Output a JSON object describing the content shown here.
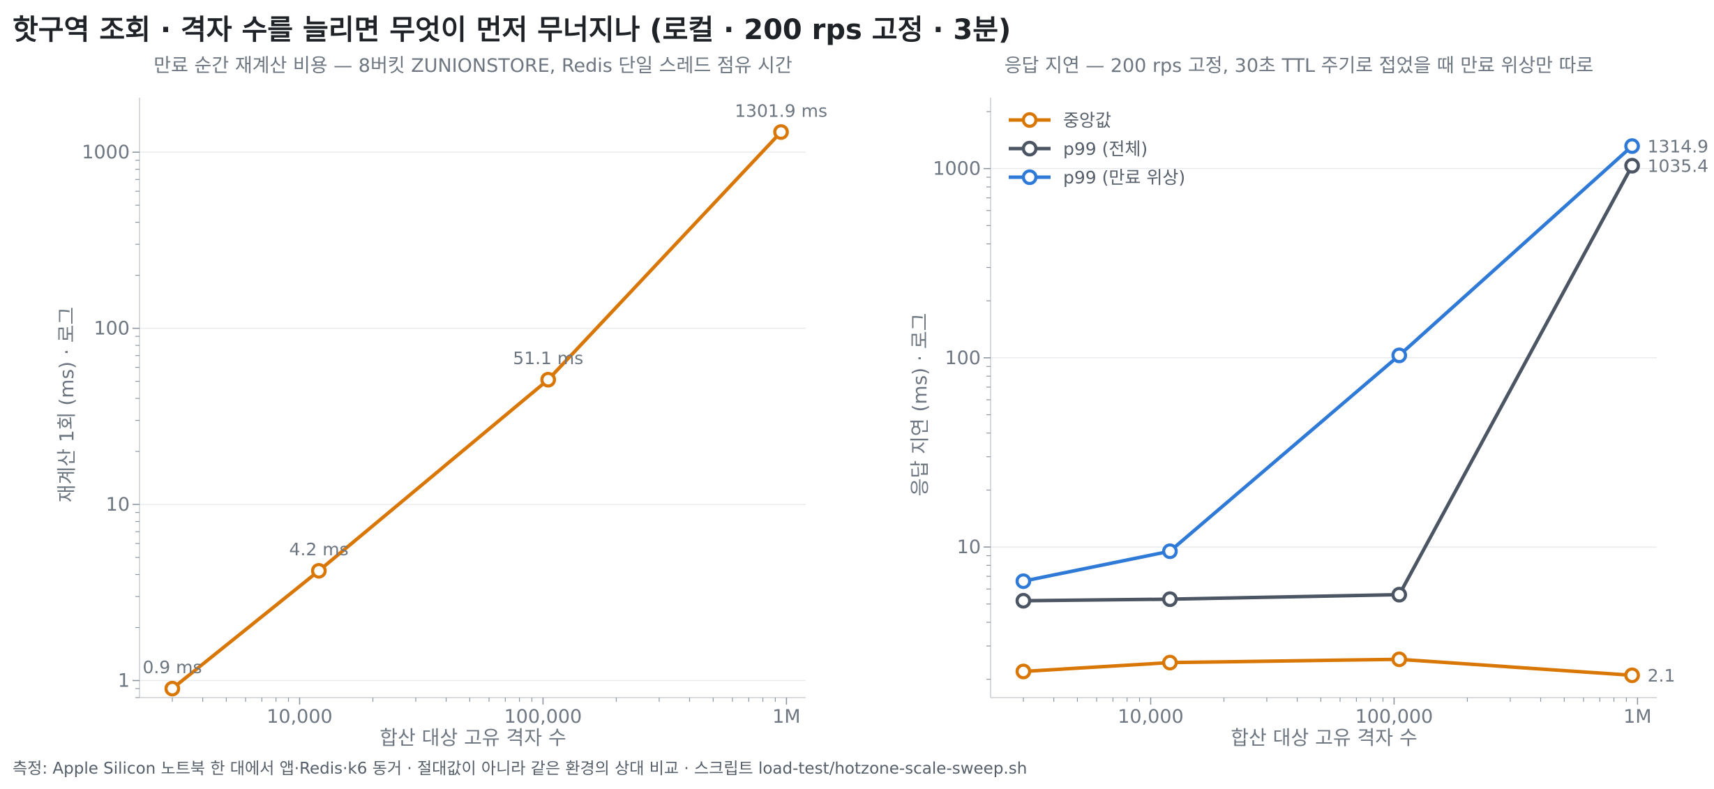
{
  "title": "핫구역 조회 · 격자 수를 늘리면 무엇이 먼저 무너지나 (로컬 · 200 rps 고정 · 3분)",
  "footnote": "측정: Apple Silicon 노트북 한 대에서 앱·Redis·k6 동거 · 절대값이 아니라 같은 환경의 상대 비교 · 스크립트 load-test/hotzone-scale-sweep.sh",
  "colors": {
    "orange": "#d97706",
    "gray": "#4b5563",
    "blue": "#2f7ad6",
    "grid": "#e8eaed",
    "axis": "#c9ced4",
    "text": "#6e7781"
  },
  "chart_data": [
    {
      "type": "line",
      "subtitle": "만료 순간 재계산 비용 — 8버킷 ZUNIONSTORE, Redis 단일 스레드 점유 시간",
      "xlabel": "합산 대상 고유 격자 수",
      "ylabel": "재계산 1회 (ms) · 로그",
      "xscale": "log",
      "yscale": "log",
      "xlim": [
        2200,
        1200000
      ],
      "ylim": [
        0.8,
        1700
      ],
      "xticks": [
        10000,
        100000,
        1000000
      ],
      "xtick_labels": [
        "10,000",
        "100,000",
        "1M"
      ],
      "yticks": [
        1,
        10,
        100,
        1000
      ],
      "ytick_labels": [
        "1",
        "10",
        "100",
        "1000"
      ],
      "grid": true,
      "series": [
        {
          "name": "",
          "color": "#d97706",
          "x": [
            3000,
            12000,
            105000,
            950000
          ],
          "y": [
            0.9,
            4.2,
            51.1,
            1301.9
          ],
          "labels": [
            "0.9 ms",
            "4.2 ms",
            "51.1 ms",
            "1301.9 ms"
          ]
        }
      ]
    },
    {
      "type": "line",
      "subtitle": "응답 지연 — 200 rps 고정, 30초 TTL 주기로 접었을 때 만료 위상만 따로",
      "xlabel": "합산 대상 고유 격자 수",
      "ylabel": "응답 지연 (ms) · 로그",
      "xscale": "log",
      "yscale": "log",
      "xlim": [
        2200,
        1200000
      ],
      "ylim": [
        1.6,
        2000
      ],
      "xticks": [
        10000,
        100000,
        1000000
      ],
      "xtick_labels": [
        "10,000",
        "100,000",
        "1M"
      ],
      "yticks": [
        10,
        100,
        1000
      ],
      "ytick_labels": [
        "10",
        "100",
        "1000"
      ],
      "grid": true,
      "legend": "top-left",
      "series": [
        {
          "name": "중앙값",
          "color": "#d97706",
          "x": [
            3000,
            12000,
            105000,
            950000
          ],
          "y": [
            2.2,
            2.45,
            2.55,
            2.1
          ],
          "end_label": "2.1"
        },
        {
          "name": "p99 (전체)",
          "color": "#4b5563",
          "x": [
            3000,
            12000,
            105000,
            950000
          ],
          "y": [
            5.2,
            5.3,
            5.6,
            1035.4
          ],
          "end_label": "1035.4"
        },
        {
          "name": "p99 (만료 위상)",
          "color": "#2f7ad6",
          "x": [
            3000,
            12000,
            105000,
            950000
          ],
          "y": [
            6.6,
            9.5,
            103,
            1314.9
          ],
          "end_label": "1314.9"
        }
      ]
    }
  ]
}
